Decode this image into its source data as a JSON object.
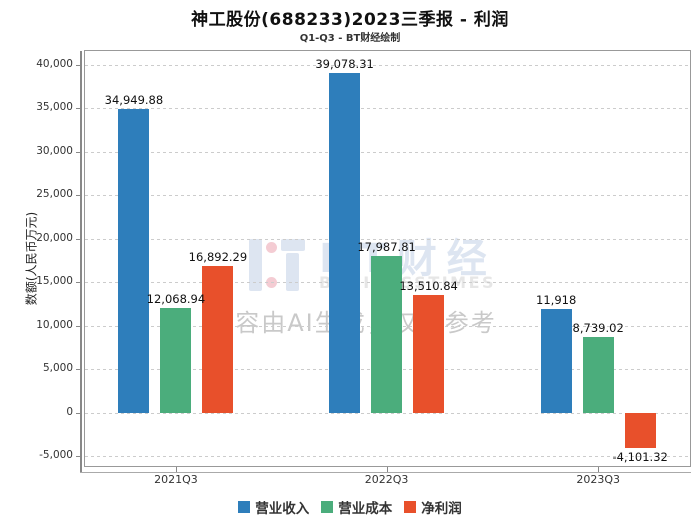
{
  "title": "神工股份(688233)2023三季报 - 利润",
  "subtitle": "Q1-Q3 - BT财经绘制",
  "ylabel": "数额(人民币万元)",
  "watermark": {
    "logo_text": "BT财经",
    "logo_sub": "BUSINESSTIMES",
    "ai_note": "内容由AI生成，仅供参考"
  },
  "chart_data": {
    "type": "bar",
    "title": "神工股份(688233)2023三季报 - 利润",
    "subtitle": "Q1-Q3 - BT财经绘制",
    "xlabel": "",
    "ylabel": "数额(人民币万元)",
    "categories": [
      "2021Q3",
      "2022Q3",
      "2023Q3"
    ],
    "series": [
      {
        "name": "营业收入",
        "color": "#2E7EBB",
        "values": [
          34949.88,
          39078.31,
          11918
        ],
        "labels": [
          "34,949.88",
          "39,078.31",
          "11,918"
        ]
      },
      {
        "name": "营业成本",
        "color": "#4BAD7C",
        "values": [
          12068.94,
          17987.81,
          8739.02
        ],
        "labels": [
          "12,068.94",
          "17,987.81",
          "8,739.02"
        ]
      },
      {
        "name": "净利润",
        "color": "#E8502B",
        "values": [
          16892.29,
          13510.84,
          -4101.32
        ],
        "labels": [
          "16,892.29",
          "13,510.84",
          "-4,101.32"
        ]
      }
    ],
    "ylim": [
      -5000,
      40000
    ],
    "yticks": [
      {
        "value": 40000,
        "label": "40,000"
      },
      {
        "value": 35000,
        "label": "35,000"
      },
      {
        "value": 30000,
        "label": "30,000"
      },
      {
        "value": 25000,
        "label": "25,000"
      },
      {
        "value": 20000,
        "label": "20,000"
      },
      {
        "value": 15000,
        "label": "15,000"
      },
      {
        "value": 10000,
        "label": "10,000"
      },
      {
        "value": 5000,
        "label": "5,000"
      },
      {
        "value": 0,
        "label": "0"
      },
      {
        "value": -5000,
        "label": "-5,000"
      }
    ],
    "grid": "horizontal-dashed",
    "legend_position": "bottom-center"
  }
}
